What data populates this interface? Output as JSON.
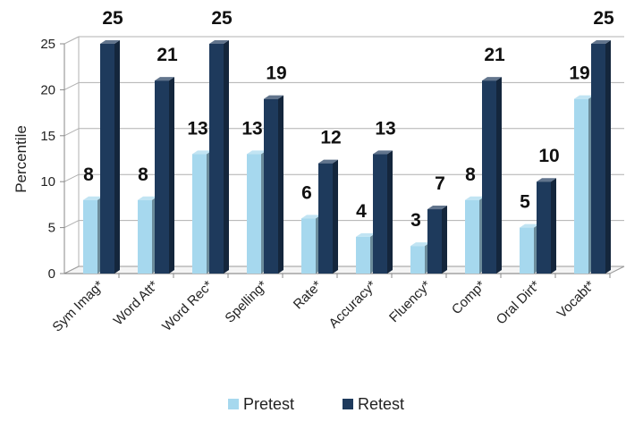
{
  "chart_data": {
    "type": "bar",
    "categories": [
      "Sym Imag*",
      "Word Att*",
      "Word Rec*",
      "Spelling*",
      "Rate*",
      "Accuracy*",
      "Fluency*",
      "Comp*",
      "Oral Dirt*",
      "Vocabt*"
    ],
    "series": [
      {
        "name": "Pretest",
        "values": [
          8,
          8,
          13,
          13,
          6,
          4,
          3,
          8,
          5,
          19
        ]
      },
      {
        "name": "Retest",
        "values": [
          25,
          21,
          25,
          19,
          12,
          13,
          7,
          21,
          10,
          25
        ]
      }
    ],
    "xlabel": "",
    "ylabel": "Percentile",
    "ylim": [
      0,
      25
    ],
    "yticks": [
      0,
      5,
      10,
      15,
      20,
      25
    ],
    "grid": true,
    "legend": "bottom",
    "colors": {
      "Pretest": "#a6d8ee",
      "Retest": "#1e3a5c"
    }
  }
}
